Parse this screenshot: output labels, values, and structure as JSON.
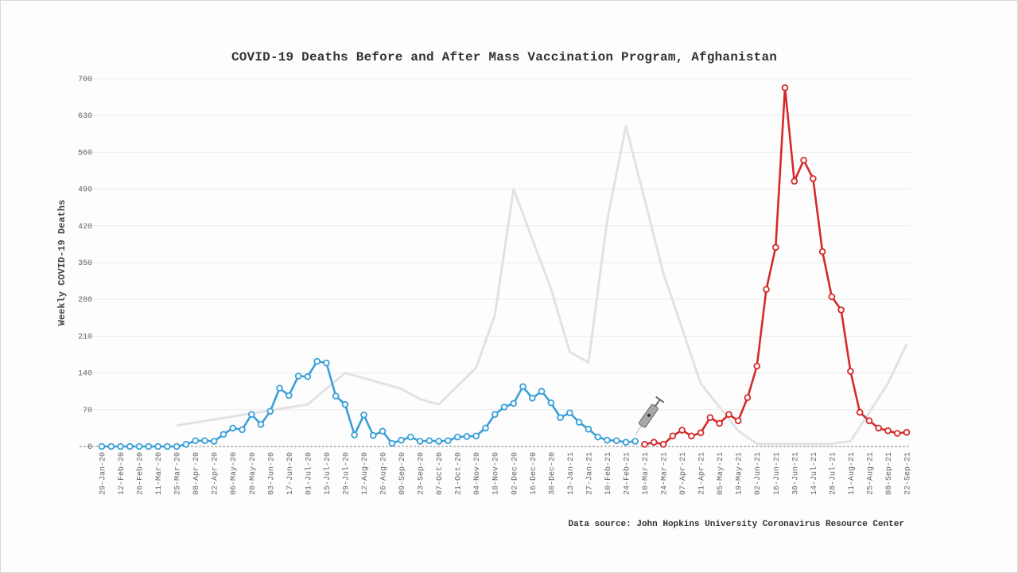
{
  "chart_data": {
    "type": "line",
    "title": "COVID-19 Deaths Before and After Mass Vaccination Program, Afghanistan",
    "ylabel": "Weekly COVID-19 Deaths",
    "xlabel": "",
    "source": "Data source: John Hopkins University Coronavirus Resource Center",
    "ylim": [
      0,
      700
    ],
    "yticks": [
      0,
      70,
      140,
      210,
      280,
      350,
      420,
      490,
      560,
      630,
      700
    ],
    "grid": true,
    "x": [
      "29-Jan-20",
      "05-Feb-20",
      "12-Feb-20",
      "19-Feb-20",
      "26-Feb-20",
      "04-Mar-20",
      "11-Mar-20",
      "18-Mar-20",
      "25-Mar-20",
      "01-Apr-20",
      "08-Apr-20",
      "15-Apr-20",
      "22-Apr-20",
      "29-Apr-20",
      "06-May-20",
      "13-May-20",
      "20-May-20",
      "27-May-20",
      "03-Jun-20",
      "10-Jun-20",
      "17-Jun-20",
      "24-Jun-20",
      "01-Jul-20",
      "08-Jul-20",
      "15-Jul-20",
      "22-Jul-20",
      "29-Jul-20",
      "05-Aug-20",
      "12-Aug-20",
      "19-Aug-20",
      "26-Aug-20",
      "02-Sep-20",
      "09-Sep-20",
      "16-Sep-20",
      "23-Sep-20",
      "30-Sep-20",
      "07-Oct-20",
      "14-Oct-20",
      "21-Oct-20",
      "28-Oct-20",
      "04-Nov-20",
      "11-Nov-20",
      "18-Nov-20",
      "25-Nov-20",
      "02-Dec-20",
      "09-Dec-20",
      "16-Dec-20",
      "23-Dec-20",
      "30-Dec-20",
      "06-Jan-21",
      "13-Jan-21",
      "20-Jan-21",
      "27-Jan-21",
      "03-Feb-21",
      "10-Feb-21",
      "17-Feb-21",
      "24-Feb-21",
      "03-Mar-21",
      "10-Mar-21",
      "17-Mar-21",
      "24-Mar-21",
      "31-Mar-21",
      "07-Apr-21",
      "14-Apr-21",
      "21-Apr-21",
      "28-Apr-21",
      "05-May-21",
      "12-May-21",
      "19-May-21",
      "26-May-21",
      "02-Jun-21",
      "09-Jun-21",
      "16-Jun-21",
      "23-Jun-21",
      "30-Jun-21",
      "07-Jul-21",
      "14-Jul-21",
      "21-Jul-21",
      "28-Jul-21",
      "04-Aug-21",
      "11-Aug-21",
      "18-Aug-21",
      "25-Aug-21",
      "01-Sep-21",
      "08-Sep-21",
      "15-Sep-21",
      "22-Sep-21"
    ],
    "xticks": [
      "29-Jan-20",
      "12-Feb-20",
      "26-Feb-20",
      "11-Mar-20",
      "25-Mar-20",
      "08-Apr-20",
      "22-Apr-20",
      "06-May-20",
      "20-May-20",
      "03-Jun-20",
      "17-Jun-20",
      "01-Jul-20",
      "15-Jul-20",
      "29-Jul-20",
      "12-Aug-20",
      "26-Aug-20",
      "09-Sep-20",
      "23-Sep-20",
      "07-Oct-20",
      "21-Oct-20",
      "04-Nov-20",
      "18-Nov-20",
      "02-Dec-20",
      "16-Dec-20",
      "30-Dec-20",
      "13-Jan-21",
      "27-Jan-21",
      "10-Feb-21",
      "24-Feb-21",
      "10-Mar-21",
      "24-Mar-21",
      "07-Apr-21",
      "21-Apr-21",
      "05-May-21",
      "19-May-21",
      "02-Jun-21",
      "16-Jun-21",
      "30-Jun-21",
      "14-Jul-21",
      "28-Jul-21",
      "11-Aug-21",
      "25-Aug-21",
      "08-Sep-21",
      "22-Sep-21"
    ],
    "series": [
      {
        "color": "#3a9fd8",
        "values": [
          0,
          0,
          0,
          0,
          0,
          0,
          0,
          0,
          0,
          4,
          11,
          11,
          10,
          23,
          35,
          32,
          61,
          42,
          67,
          111,
          97,
          134,
          133,
          162,
          159,
          96,
          80,
          22,
          60,
          21,
          29,
          6,
          12,
          18,
          10,
          11,
          10,
          11,
          18,
          19,
          20,
          35,
          61,
          75,
          82,
          114,
          92,
          105,
          83,
          55,
          64,
          46,
          33,
          18,
          12,
          11,
          8,
          10,
          null,
          null,
          null,
          null,
          null,
          null,
          null,
          null,
          null,
          null,
          null,
          null,
          null,
          null,
          null,
          null,
          null,
          null,
          null,
          null,
          null,
          null,
          null,
          null,
          null,
          null,
          null,
          null,
          null
        ]
      },
      {
        "color": "#d42a2a",
        "values": [
          null,
          null,
          null,
          null,
          null,
          null,
          null,
          null,
          null,
          null,
          null,
          null,
          null,
          null,
          null,
          null,
          null,
          null,
          null,
          null,
          null,
          null,
          null,
          null,
          null,
          null,
          null,
          null,
          null,
          null,
          null,
          null,
          null,
          null,
          null,
          null,
          null,
          null,
          null,
          null,
          null,
          null,
          null,
          null,
          null,
          null,
          null,
          null,
          null,
          null,
          null,
          null,
          null,
          null,
          null,
          null,
          null,
          null,
          4,
          8,
          4,
          20,
          31,
          20,
          26,
          55,
          44,
          61,
          49,
          93,
          153,
          299,
          379,
          683,
          505,
          545,
          510,
          371,
          285,
          260,
          143,
          65,
          49,
          35,
          30,
          25,
          27
        ]
      }
    ],
    "background_series": {
      "color": "#e2e2e2",
      "points": [
        [
          "25-Mar-20",
          40
        ],
        [
          "01-Jul-20",
          80
        ],
        [
          "29-Jul-20",
          140
        ],
        [
          "09-Sep-20",
          110
        ],
        [
          "23-Sep-20",
          90
        ],
        [
          "07-Oct-20",
          80
        ],
        [
          "04-Nov-20",
          150
        ],
        [
          "18-Nov-20",
          250
        ],
        [
          "02-Dec-20",
          490
        ],
        [
          "30-Dec-20",
          300
        ],
        [
          "13-Jan-21",
          180
        ],
        [
          "27-Jan-21",
          160
        ],
        [
          "10-Feb-21",
          430
        ],
        [
          "24-Feb-21",
          610
        ],
        [
          "24-Mar-21",
          330
        ],
        [
          "21-Apr-21",
          120
        ],
        [
          "19-May-21",
          30
        ],
        [
          "02-Jun-21",
          5
        ],
        [
          "30-Jun-21",
          5
        ],
        [
          "28-Jul-21",
          5
        ],
        [
          "11-Aug-21",
          10
        ],
        [
          "08-Sep-21",
          120
        ],
        [
          "22-Sep-21",
          195
        ]
      ]
    },
    "annotation_icon": "syringe-icon",
    "annotation_at": "03-Mar-21"
  }
}
